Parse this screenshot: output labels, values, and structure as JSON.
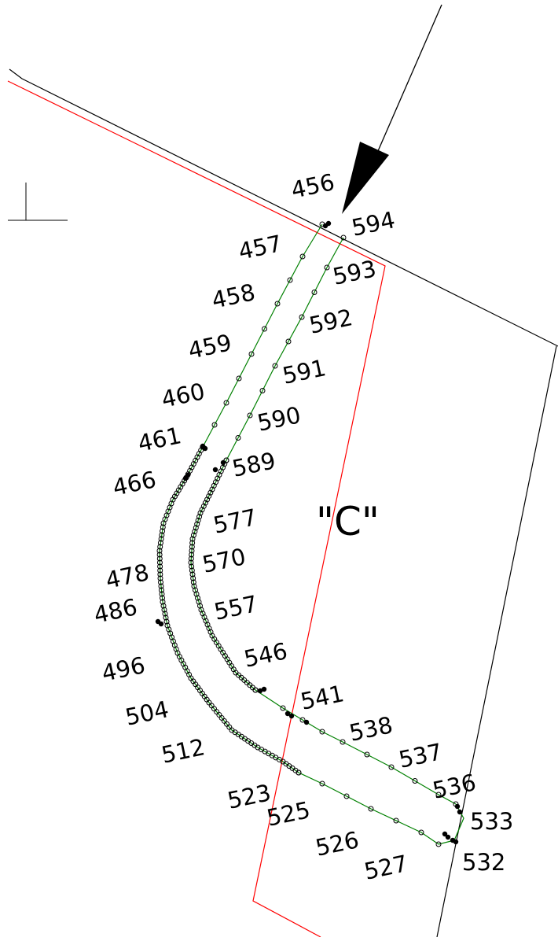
{
  "colors": {
    "background": "#ffffff",
    "outline": "#000000",
    "boundary": "#ff0000",
    "path": "#008000"
  },
  "region_label": "\"C\"",
  "outer_points": [
    "456",
    "457",
    "458",
    "459",
    "460",
    "461",
    "466",
    "478",
    "486",
    "496",
    "504",
    "512",
    "523",
    "525",
    "526",
    "527"
  ],
  "inner_points": [
    "594",
    "593",
    "592",
    "591",
    "590",
    "589",
    "577",
    "570",
    "557",
    "546",
    "541",
    "538",
    "537",
    "536"
  ],
  "end_points": [
    "533",
    "532"
  ]
}
